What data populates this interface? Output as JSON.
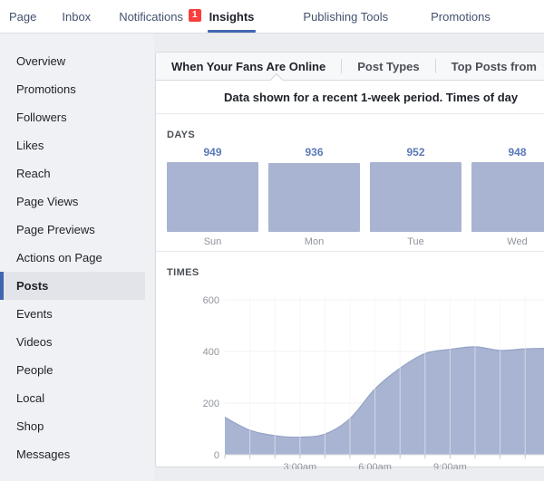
{
  "nav": {
    "items": [
      {
        "label": "Page",
        "active": false
      },
      {
        "label": "Inbox",
        "active": false
      },
      {
        "label": "Notifications",
        "active": false,
        "badge": "1"
      },
      {
        "label": "Insights",
        "active": true
      },
      {
        "label": "Publishing Tools",
        "active": false
      },
      {
        "label": "Promotions",
        "active": false
      }
    ]
  },
  "sidebar": {
    "items": [
      "Overview",
      "Promotions",
      "Followers",
      "Likes",
      "Reach",
      "Page Views",
      "Page Previews",
      "Actions on Page",
      "Posts",
      "Events",
      "Videos",
      "People",
      "Local",
      "Shop",
      "Messages"
    ],
    "active_item": "Posts"
  },
  "tabs": [
    {
      "label": "When Your Fans Are Online",
      "active": true
    },
    {
      "label": "Post Types",
      "active": false
    },
    {
      "label": "Top Posts from",
      "active": false
    }
  ],
  "banner_text": "Data shown for a recent 1-week period. Times of day",
  "chart_data": [
    {
      "type": "bar",
      "title": "DAYS",
      "categories": [
        "Sun",
        "Mon",
        "Tue",
        "Wed"
      ],
      "values": [
        949,
        936,
        952,
        948
      ],
      "ylim": [
        0,
        952
      ],
      "legend": "none",
      "grid": false
    },
    {
      "type": "area",
      "title": "TIMES",
      "xlabel": "",
      "ylabel": "",
      "x_hours": [
        0,
        1,
        2,
        3,
        4,
        5,
        6,
        7,
        8,
        9,
        10,
        11,
        12,
        13
      ],
      "values": [
        145,
        95,
        74,
        68,
        80,
        140,
        255,
        335,
        392,
        408,
        418,
        404,
        410,
        412
      ],
      "x_tick_labels": [
        {
          "hour": 3,
          "label": "3:00am"
        },
        {
          "hour": 6,
          "label": "6:00am"
        },
        {
          "hour": 9,
          "label": "9:00am"
        }
      ],
      "yticks": [
        0,
        200,
        400,
        600
      ],
      "ylim": [
        0,
        600
      ],
      "grid": true,
      "legend": "none"
    }
  ],
  "colors": {
    "accent_blue": "#4267b2",
    "badge_red": "#fa3e3e",
    "chart_fill": "#a9b4d2",
    "chart_line": "#94a3c6",
    "value_text": "#5b79b7",
    "gridline": "#f0f1f4",
    "tick": "#c6c9cf"
  }
}
